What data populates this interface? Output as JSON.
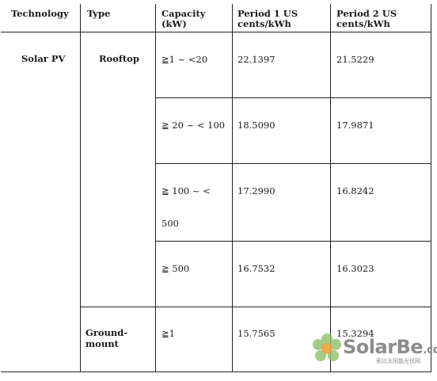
{
  "table": {
    "headers": {
      "technology": "Technology",
      "type": "Type",
      "capacity_line1": "Capacity",
      "capacity_line2": "(kW)",
      "period1_line1": "Period 1 US",
      "period1_line2": "cents/kWh",
      "period2_line1": "Period 2 US",
      "period2_line2": "cents/kWh"
    },
    "technology": "Solar PV",
    "types": {
      "rooftop": "Rooftop",
      "ground_line1": "Ground-",
      "ground_line2": "mount"
    },
    "rows": [
      {
        "capacity": "≧1 ~ <20",
        "period1": "22.1397",
        "period2": "21.5229"
      },
      {
        "capacity": "≧ 20 ~ < 100",
        "period1": "18.5090",
        "period2": "17.9871"
      },
      {
        "capacity_line1": "≧ 100 ~ <",
        "capacity_line2": "500",
        "period1": "17.2990",
        "period2": "16.8242"
      },
      {
        "capacity": "≧ 500",
        "period1": "16.7532",
        "period2": "16.3023"
      },
      {
        "capacity": "≧1",
        "period1": "15.7565",
        "period2": "15.3294"
      }
    ]
  },
  "watermark": {
    "logo_text": "SolarBe",
    "logo_suffix": ".com",
    "tagline": "索比太阳能光伏网"
  }
}
